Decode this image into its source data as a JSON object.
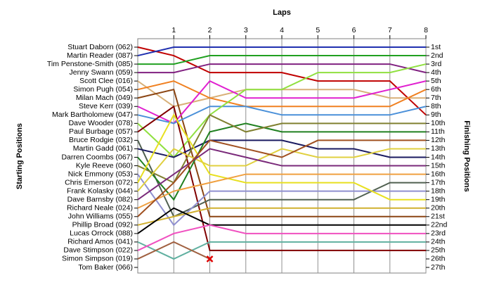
{
  "chart_data": {
    "type": "lap",
    "title": "Laps",
    "y_left_title": "Starting Positions",
    "y_right_title": "Finishing Positions",
    "x": [
      0,
      1,
      2,
      3,
      4,
      5,
      6,
      7,
      8
    ],
    "xlim": [
      0,
      8
    ],
    "xticks": [
      1,
      2,
      3,
      4,
      5,
      6,
      7,
      8
    ],
    "ylim": [
      1,
      27
    ],
    "grid": true,
    "y2ticks": [
      {
        "value": 1,
        "label": "1st"
      },
      {
        "value": 2,
        "label": "2nd"
      },
      {
        "value": 3,
        "label": "3rd"
      },
      {
        "value": 4,
        "label": "4th"
      },
      {
        "value": 5,
        "label": "5th"
      },
      {
        "value": 6,
        "label": "6th"
      },
      {
        "value": 7,
        "label": "7th"
      },
      {
        "value": 8,
        "label": "8th"
      },
      {
        "value": 9,
        "label": "9th"
      },
      {
        "value": 10,
        "label": "10th"
      },
      {
        "value": 11,
        "label": "11th"
      },
      {
        "value": 12,
        "label": "12th"
      },
      {
        "value": 13,
        "label": "13th"
      },
      {
        "value": 14,
        "label": "14th"
      },
      {
        "value": 15,
        "label": "15th"
      },
      {
        "value": 16,
        "label": "16th"
      },
      {
        "value": 17,
        "label": "17th"
      },
      {
        "value": 18,
        "label": "18th"
      },
      {
        "value": 19,
        "label": "19th"
      },
      {
        "value": 20,
        "label": "20th"
      },
      {
        "value": 21,
        "label": "21st"
      },
      {
        "value": 22,
        "label": "22nd"
      },
      {
        "value": 23,
        "label": "23rd"
      },
      {
        "value": 24,
        "label": "24th"
      },
      {
        "value": 25,
        "label": "25th"
      },
      {
        "value": 26,
        "label": "26th"
      },
      {
        "value": 27,
        "label": "27th"
      }
    ],
    "series": [
      {
        "name": "Stuart Daborn (062)",
        "color": "#c00000",
        "values": [
          1,
          2,
          4,
          4,
          4,
          5,
          5,
          5,
          9
        ]
      },
      {
        "name": "Martin Reader (087)",
        "color": "#2030b0",
        "values": [
          2,
          1,
          1,
          1,
          1,
          1,
          1,
          1,
          1
        ]
      },
      {
        "name": "Tim Penstone-Smith (085)",
        "color": "#20a020",
        "values": [
          3,
          3,
          2,
          2,
          2,
          2,
          2,
          2,
          2
        ]
      },
      {
        "name": "Jenny Swann (059)",
        "color": "#802080",
        "values": [
          4,
          4,
          3,
          3,
          3,
          3,
          3,
          3,
          4
        ]
      },
      {
        "name": "Scott Clee (016)",
        "color": "#d8b078",
        "values": [
          5,
          8,
          7,
          6,
          6,
          6,
          6,
          7,
          7
        ]
      },
      {
        "name": "Simon Pugh (054)",
        "color": "#f08020",
        "values": [
          6,
          5,
          7,
          8,
          8,
          8,
          8,
          8,
          6
        ]
      },
      {
        "name": "Milan Mach (049)",
        "color": "#8b4513",
        "values": [
          7,
          6,
          21,
          21,
          21,
          21,
          21,
          21,
          21
        ]
      },
      {
        "name": "Steve Kerr (039)",
        "color": "#e020d0",
        "values": [
          8,
          10,
          5,
          7,
          7,
          7,
          7,
          6,
          5
        ]
      },
      {
        "name": "Mark Bartholomew (047)",
        "color": "#4a90d9",
        "values": [
          9,
          10,
          8,
          8,
          9,
          9,
          9,
          9,
          8
        ]
      },
      {
        "name": "Dave Wooder (078)",
        "color": "#90e040",
        "values": [
          10,
          14,
          9,
          6,
          6,
          4,
          4,
          4,
          3
        ]
      },
      {
        "name": "Paul Burbage (057)",
        "color": "#800000",
        "values": [
          11,
          8,
          25,
          25,
          25,
          25,
          25,
          25,
          25
        ]
      },
      {
        "name": "Bruce Rodgie (032)",
        "color": "#506050",
        "values": [
          12,
          21,
          19,
          19,
          19,
          19,
          19,
          17,
          17
        ]
      },
      {
        "name": "Martin Gadd (061)",
        "color": "#1a1a60",
        "values": [
          13,
          14,
          12,
          12,
          12,
          13,
          13,
          14,
          14
        ]
      },
      {
        "name": "Darren Coombs (067)",
        "color": "#208020",
        "values": [
          14,
          19,
          11,
          10,
          11,
          11,
          11,
          11,
          11
        ]
      },
      {
        "name": "Kyle Reeve (060)",
        "color": "#808030",
        "values": [
          15,
          17,
          9,
          11,
          10,
          10,
          10,
          10,
          10
        ]
      },
      {
        "name": "Nick Emmony (053)",
        "color": "#9090d0",
        "values": [
          16,
          22,
          18,
          18,
          18,
          18,
          18,
          18,
          18
        ]
      },
      {
        "name": "Chris Emerson (072)",
        "color": "#e8e020",
        "values": [
          17,
          9,
          16,
          17,
          17,
          17,
          17,
          19,
          19
        ]
      },
      {
        "name": "Frank Kolasky (044)",
        "color": "#e0d040",
        "values": [
          18,
          13,
          15,
          15,
          13,
          14,
          14,
          13,
          13
        ]
      },
      {
        "name": "Dave Barnsby (082)",
        "color": "#7a2a7a",
        "values": [
          19,
          16,
          13,
          14,
          15,
          15,
          15,
          15,
          15
        ]
      },
      {
        "name": "Richard Neale (024)",
        "color": "#f0a040",
        "values": [
          20,
          18,
          17,
          16,
          16,
          16,
          16,
          16,
          16
        ]
      },
      {
        "name": "John Williams (055)",
        "color": "#a05020",
        "values": [
          21,
          17,
          12,
          13,
          14,
          12,
          12,
          12,
          12
        ]
      },
      {
        "name": "Phillip Broad (092)",
        "color": "#d0b030",
        "values": [
          22,
          21,
          20,
          20,
          20,
          20,
          20,
          20,
          20
        ]
      },
      {
        "name": "Lucas Orrock (088)",
        "color": "#000000",
        "values": [
          23,
          20,
          22,
          22,
          22,
          22,
          22,
          22,
          22
        ]
      },
      {
        "name": "Richard Amos (041)",
        "color": "#60b0a0",
        "values": [
          24,
          26,
          24,
          24,
          24,
          24,
          24,
          24,
          24
        ]
      },
      {
        "name": "Dave Stimpson (022)",
        "color": "#f050c0",
        "values": [
          25,
          23,
          22,
          23,
          23,
          23,
          23,
          23,
          23
        ]
      },
      {
        "name": "Simon Simpson (019)",
        "color": "#a06040",
        "marker": "x",
        "values": [
          26,
          24,
          26,
          null,
          null,
          null,
          null,
          null,
          null
        ]
      },
      {
        "name": "Tom Baker (066)",
        "color": "#808080",
        "values": [
          27,
          null,
          null,
          null,
          null,
          null,
          null,
          null,
          null
        ]
      }
    ]
  }
}
